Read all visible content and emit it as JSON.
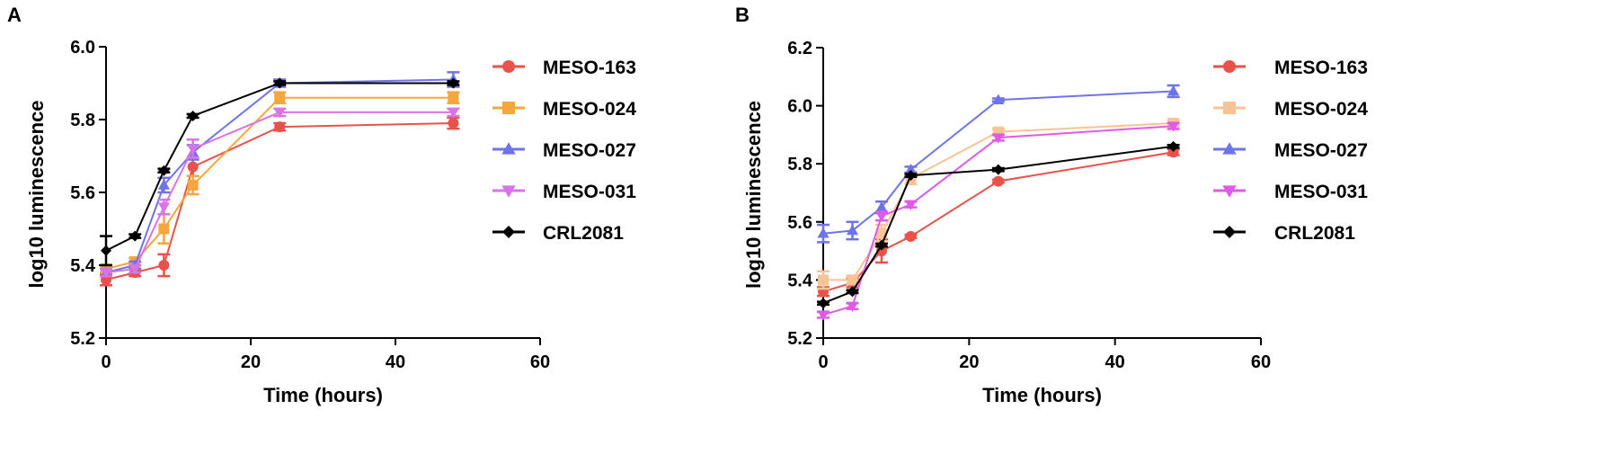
{
  "chart_data": [
    {
      "type": "line",
      "panel": "A",
      "title": "",
      "xlabel": "Time (hours)",
      "ylabel": "log10 luminescence",
      "xlim": [
        0,
        60
      ],
      "ylim": [
        5.2,
        6.0
      ],
      "xticks": [
        "0",
        "20",
        "40",
        "60"
      ],
      "yticks": [
        "5.2",
        "5.4",
        "5.6",
        "5.8",
        "6.0"
      ],
      "legend_position": "right",
      "series": [
        {
          "name": "MESO-163",
          "color": "#e8524a",
          "marker": "circle",
          "x": [
            0,
            4,
            8,
            12,
            24,
            48
          ],
          "y": [
            5.36,
            5.38,
            5.4,
            5.67,
            5.78,
            5.79
          ],
          "err": [
            0.015,
            0.01,
            0.03,
            0.025,
            0.01,
            0.015
          ]
        },
        {
          "name": "MESO-024",
          "color": "#f5a63c",
          "marker": "square",
          "x": [
            0,
            4,
            8,
            12,
            24,
            48
          ],
          "y": [
            5.39,
            5.41,
            5.5,
            5.62,
            5.86,
            5.86
          ],
          "err": [
            0.01,
            0.01,
            0.04,
            0.025,
            0.015,
            0.015
          ]
        },
        {
          "name": "MESO-027",
          "color": "#6f73e8",
          "marker": "triangle-up",
          "x": [
            0,
            4,
            8,
            12,
            24,
            48
          ],
          "y": [
            5.38,
            5.4,
            5.62,
            5.71,
            5.9,
            5.91
          ],
          "err": [
            0.01,
            0.01,
            0.02,
            0.02,
            0.01,
            0.02
          ]
        },
        {
          "name": "MESO-031",
          "color": "#d874e8",
          "marker": "triangle-down",
          "x": [
            0,
            4,
            8,
            12,
            24,
            48
          ],
          "y": [
            5.38,
            5.39,
            5.56,
            5.72,
            5.82,
            5.82
          ],
          "err": [
            0.01,
            0.01,
            0.02,
            0.025,
            0.01,
            0.01
          ]
        },
        {
          "name": "CRL2081",
          "color": "#000000",
          "marker": "diamond",
          "x": [
            0,
            4,
            8,
            12,
            24,
            48
          ],
          "y": [
            5.44,
            5.48,
            5.66,
            5.81,
            5.9,
            5.9
          ],
          "err": [
            0.04,
            0.005,
            0.005,
            0.005,
            0.005,
            0.005
          ]
        }
      ]
    },
    {
      "type": "line",
      "panel": "B",
      "title": "",
      "xlabel": "Time (hours)",
      "ylabel": "log10 luminescence",
      "xlim": [
        0,
        60
      ],
      "ylim": [
        5.2,
        6.2
      ],
      "xticks": [
        "0",
        "20",
        "40",
        "60"
      ],
      "yticks": [
        "5.2",
        "5.4",
        "5.6",
        "5.8",
        "6.0",
        "6.2"
      ],
      "legend_position": "right",
      "series": [
        {
          "name": "MESO-163",
          "color": "#e8524a",
          "marker": "circle",
          "x": [
            0,
            4,
            8,
            12,
            24,
            48
          ],
          "y": [
            5.36,
            5.39,
            5.5,
            5.55,
            5.74,
            5.84
          ],
          "err": [
            0.015,
            0.015,
            0.04,
            0.005,
            0.005,
            0.01
          ]
        },
        {
          "name": "MESO-024",
          "color": "#f8c495",
          "marker": "square",
          "x": [
            0,
            4,
            8,
            12,
            24,
            48
          ],
          "y": [
            5.4,
            5.4,
            5.56,
            5.75,
            5.91,
            5.94
          ],
          "err": [
            0.03,
            0.015,
            0.03,
            0.02,
            0.01,
            0.01
          ]
        },
        {
          "name": "MESO-027",
          "color": "#6f73e8",
          "marker": "triangle-up",
          "x": [
            0,
            4,
            8,
            12,
            24,
            48
          ],
          "y": [
            5.56,
            5.57,
            5.65,
            5.78,
            6.02,
            6.05
          ],
          "err": [
            0.03,
            0.03,
            0.02,
            0.01,
            0.005,
            0.02
          ]
        },
        {
          "name": "MESO-031",
          "color": "#e05ae8",
          "marker": "triangle-down",
          "x": [
            0,
            4,
            8,
            12,
            24,
            48
          ],
          "y": [
            5.28,
            5.31,
            5.62,
            5.66,
            5.89,
            5.93
          ],
          "err": [
            0.01,
            0.01,
            0.015,
            0.01,
            0.01,
            0.01
          ]
        },
        {
          "name": "CRL2081",
          "color": "#000000",
          "marker": "diamond",
          "x": [
            0,
            4,
            8,
            12,
            24,
            48
          ],
          "y": [
            5.32,
            5.36,
            5.52,
            5.76,
            5.78,
            5.86
          ],
          "err": [
            0.005,
            0.005,
            0.005,
            0.005,
            0.005,
            0.005
          ]
        }
      ]
    }
  ]
}
